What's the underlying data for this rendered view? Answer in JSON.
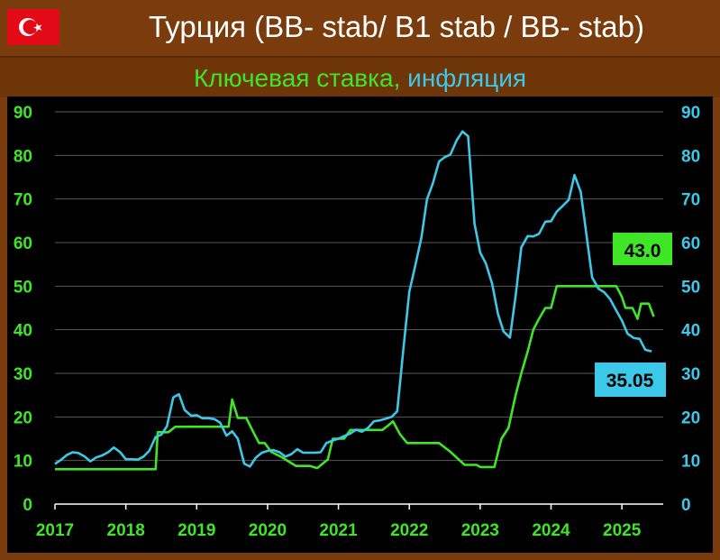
{
  "header": {
    "title": "Турция (BB- stab/ B1 stab / BB- stab)",
    "subtitle_rate": "Ключевая ставка,",
    "subtitle_inflation": "инфляция",
    "flag_icon": "turkey-flag-icon"
  },
  "colors": {
    "background": "#7a3c0c",
    "plot_bg": "#000000",
    "rate": "#3ee626",
    "inflation": "#3cc8e8",
    "grid": "#5a5a5a"
  },
  "chart_data": {
    "type": "line",
    "title": "Турция (BB- stab/ B1 stab / BB- stab)",
    "subtitle": "Ключевая ставка, инфляция",
    "xlabel": "",
    "ylabel": "",
    "xlim": [
      2017.0,
      2025.583
    ],
    "ylim": [
      0,
      90
    ],
    "x_ticks": [
      "2017",
      "2018",
      "2019",
      "2020",
      "2021",
      "2022",
      "2023",
      "2024",
      "2025"
    ],
    "y_ticks": [
      "0",
      "10",
      "20",
      "30",
      "40",
      "50",
      "60",
      "70",
      "80",
      "90"
    ],
    "grid": true,
    "series": [
      {
        "name": "Ключевая ставка",
        "color": "#3ee626",
        "points": [
          [
            2017.0,
            8.0
          ],
          [
            2018.42,
            8.0
          ],
          [
            2018.45,
            16.5
          ],
          [
            2018.6,
            16.5
          ],
          [
            2018.7,
            17.75
          ],
          [
            2019.45,
            17.75
          ],
          [
            2019.5,
            24.0
          ],
          [
            2019.58,
            19.75
          ],
          [
            2019.7,
            19.75
          ],
          [
            2019.8,
            16.5
          ],
          [
            2019.88,
            14.0
          ],
          [
            2019.96,
            14.0
          ],
          [
            2020.05,
            12.0
          ],
          [
            2020.2,
            10.75
          ],
          [
            2020.3,
            9.75
          ],
          [
            2020.4,
            8.75
          ],
          [
            2020.6,
            8.75
          ],
          [
            2020.7,
            8.25
          ],
          [
            2020.85,
            10.25
          ],
          [
            2020.92,
            15.0
          ],
          [
            2021.08,
            15.0
          ],
          [
            2021.17,
            17.0
          ],
          [
            2021.62,
            17.0
          ],
          [
            2021.7,
            18.0
          ],
          [
            2021.77,
            19.0
          ],
          [
            2021.87,
            16.0
          ],
          [
            2021.97,
            14.0
          ],
          [
            2022.42,
            14.0
          ],
          [
            2022.58,
            12.0
          ],
          [
            2022.68,
            10.5
          ],
          [
            2022.78,
            9.0
          ],
          [
            2022.95,
            9.0
          ],
          [
            2023.0,
            8.5
          ],
          [
            2023.2,
            8.5
          ],
          [
            2023.3,
            15.0
          ],
          [
            2023.4,
            17.5
          ],
          [
            2023.5,
            25.0
          ],
          [
            2023.58,
            30.0
          ],
          [
            2023.67,
            35.0
          ],
          [
            2023.75,
            40.0
          ],
          [
            2023.83,
            42.5
          ],
          [
            2023.92,
            45.0
          ],
          [
            2024.0,
            45.0
          ],
          [
            2024.08,
            50.0
          ],
          [
            2024.92,
            50.0
          ],
          [
            2025.0,
            47.5
          ],
          [
            2025.05,
            45.0
          ],
          [
            2025.15,
            45.0
          ],
          [
            2025.22,
            42.5
          ],
          [
            2025.27,
            46.0
          ],
          [
            2025.38,
            46.0
          ],
          [
            2025.45,
            43.0
          ]
        ],
        "last_label": "43.0"
      },
      {
        "name": "Инфляция",
        "color": "#3cc8e8",
        "points": [
          [
            2017.0,
            9.2
          ],
          [
            2017.08,
            10.1
          ],
          [
            2017.17,
            11.3
          ],
          [
            2017.25,
            11.9
          ],
          [
            2017.33,
            11.7
          ],
          [
            2017.42,
            10.9
          ],
          [
            2017.5,
            9.8
          ],
          [
            2017.58,
            10.7
          ],
          [
            2017.67,
            11.2
          ],
          [
            2017.75,
            11.9
          ],
          [
            2017.83,
            13.0
          ],
          [
            2017.92,
            11.9
          ],
          [
            2018.0,
            10.3
          ],
          [
            2018.08,
            10.3
          ],
          [
            2018.17,
            10.2
          ],
          [
            2018.25,
            10.9
          ],
          [
            2018.33,
            12.2
          ],
          [
            2018.42,
            15.4
          ],
          [
            2018.5,
            15.9
          ],
          [
            2018.58,
            17.9
          ],
          [
            2018.67,
            24.5
          ],
          [
            2018.75,
            25.2
          ],
          [
            2018.83,
            21.6
          ],
          [
            2018.92,
            20.3
          ],
          [
            2019.0,
            20.4
          ],
          [
            2019.08,
            19.7
          ],
          [
            2019.17,
            19.7
          ],
          [
            2019.25,
            19.5
          ],
          [
            2019.33,
            18.7
          ],
          [
            2019.42,
            15.7
          ],
          [
            2019.5,
            16.7
          ],
          [
            2019.58,
            15.0
          ],
          [
            2019.67,
            9.3
          ],
          [
            2019.75,
            8.6
          ],
          [
            2019.83,
            10.6
          ],
          [
            2019.92,
            11.8
          ],
          [
            2020.0,
            12.2
          ],
          [
            2020.08,
            12.4
          ],
          [
            2020.17,
            11.9
          ],
          [
            2020.25,
            10.9
          ],
          [
            2020.33,
            11.4
          ],
          [
            2020.42,
            12.6
          ],
          [
            2020.5,
            11.8
          ],
          [
            2020.58,
            11.8
          ],
          [
            2020.67,
            11.8
          ],
          [
            2020.75,
            11.9
          ],
          [
            2020.83,
            14.0
          ],
          [
            2020.92,
            14.6
          ],
          [
            2021.0,
            15.0
          ],
          [
            2021.08,
            15.6
          ],
          [
            2021.17,
            16.2
          ],
          [
            2021.25,
            17.1
          ],
          [
            2021.33,
            16.6
          ],
          [
            2021.42,
            17.5
          ],
          [
            2021.5,
            19.0
          ],
          [
            2021.58,
            19.2
          ],
          [
            2021.67,
            19.6
          ],
          [
            2021.75,
            20.0
          ],
          [
            2021.83,
            21.3
          ],
          [
            2021.92,
            36.1
          ],
          [
            2022.0,
            48.7
          ],
          [
            2022.08,
            54.4
          ],
          [
            2022.17,
            61.1
          ],
          [
            2022.25,
            70.0
          ],
          [
            2022.33,
            73.5
          ],
          [
            2022.42,
            78.6
          ],
          [
            2022.5,
            79.6
          ],
          [
            2022.58,
            80.2
          ],
          [
            2022.67,
            83.5
          ],
          [
            2022.75,
            85.5
          ],
          [
            2022.83,
            84.4
          ],
          [
            2022.92,
            64.3
          ],
          [
            2023.0,
            57.7
          ],
          [
            2023.08,
            55.2
          ],
          [
            2023.17,
            50.5
          ],
          [
            2023.25,
            43.7
          ],
          [
            2023.33,
            39.6
          ],
          [
            2023.42,
            38.2
          ],
          [
            2023.5,
            47.8
          ],
          [
            2023.58,
            58.9
          ],
          [
            2023.67,
            61.5
          ],
          [
            2023.75,
            61.4
          ],
          [
            2023.83,
            62.0
          ],
          [
            2023.92,
            64.8
          ],
          [
            2024.0,
            64.9
          ],
          [
            2024.08,
            67.1
          ],
          [
            2024.17,
            68.5
          ],
          [
            2024.25,
            69.8
          ],
          [
            2024.33,
            75.5
          ],
          [
            2024.42,
            71.6
          ],
          [
            2024.5,
            61.8
          ],
          [
            2024.58,
            52.0
          ],
          [
            2024.67,
            49.4
          ],
          [
            2024.75,
            48.6
          ],
          [
            2024.83,
            47.1
          ],
          [
            2024.92,
            44.4
          ],
          [
            2025.0,
            42.1
          ],
          [
            2025.08,
            39.1
          ],
          [
            2025.17,
            38.1
          ],
          [
            2025.25,
            37.9
          ],
          [
            2025.33,
            35.4
          ],
          [
            2025.42,
            35.05
          ]
        ],
        "last_label": "35.05"
      }
    ]
  }
}
